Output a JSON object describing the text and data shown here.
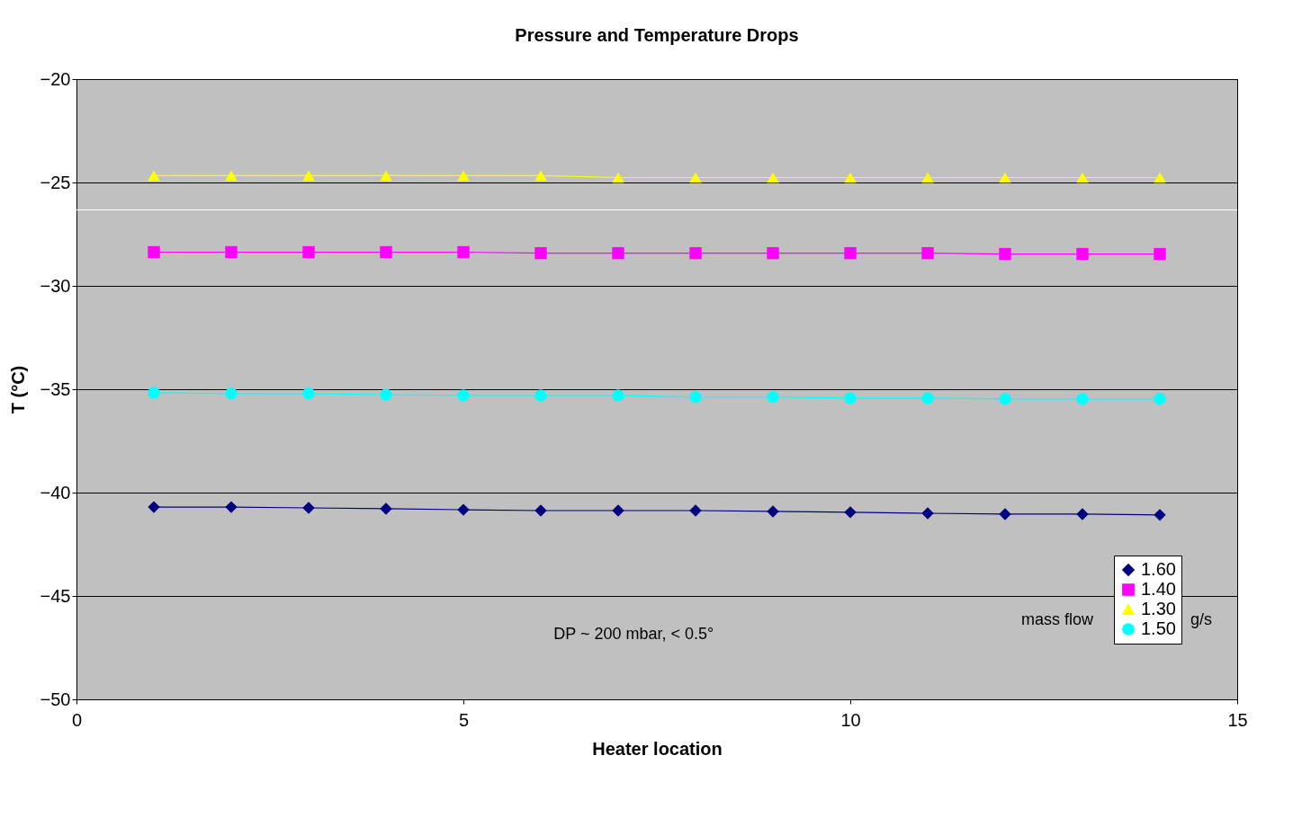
{
  "chart_data": {
    "type": "line",
    "title": "Pressure and Temperature Drops",
    "xlabel": "Heater location",
    "ylabel": "T (°C)",
    "x": [
      1,
      2,
      3,
      4,
      5,
      6,
      7,
      8,
      9,
      10,
      11,
      12,
      13,
      14
    ],
    "series": [
      {
        "name": "1.60",
        "color": "#000080",
        "marker": "diamond",
        "values": [
          -40.7,
          -40.7,
          -40.74,
          -40.78,
          -40.83,
          -40.87,
          -40.87,
          -40.87,
          -40.91,
          -40.95,
          -41.0,
          -41.04,
          -41.04,
          -41.08
        ]
      },
      {
        "name": "1.40",
        "color": "#ff00ff",
        "marker": "square",
        "values": [
          -28.37,
          -28.37,
          -28.37,
          -28.37,
          -28.37,
          -28.42,
          -28.42,
          -28.42,
          -28.42,
          -28.42,
          -28.42,
          -28.46,
          -28.46,
          -28.46
        ]
      },
      {
        "name": "1.30",
        "color": "#ffff00",
        "marker": "triangle",
        "values": [
          -24.67,
          -24.67,
          -24.67,
          -24.67,
          -24.67,
          -24.67,
          -24.76,
          -24.76,
          -24.76,
          -24.76,
          -24.76,
          -24.76,
          -24.76,
          -24.76
        ]
      },
      {
        "name": "1.50",
        "color": "#00ffff",
        "marker": "circle",
        "values": [
          -35.17,
          -35.21,
          -35.21,
          -35.26,
          -35.3,
          -35.3,
          -35.3,
          -35.38,
          -35.38,
          -35.43,
          -35.43,
          -35.47,
          -35.47,
          -35.47
        ]
      }
    ],
    "xlim": [
      0,
      15
    ],
    "xticks": [
      0,
      5,
      10,
      15
    ],
    "ylim": [
      -50,
      -20
    ],
    "yticks": [
      -50,
      -45,
      -40,
      -35,
      -30,
      -25,
      -20
    ],
    "grid": "y",
    "legend": "bottom right",
    "line_style": "solid",
    "ref_lines": [
      {
        "axis": "y",
        "value": -26.33,
        "label": null,
        "color": "#ffffff"
      }
    ],
    "annotations": [
      "DP ~ 200 mbar, < 0.5°",
      "mass flow",
      "g/s"
    ]
  }
}
